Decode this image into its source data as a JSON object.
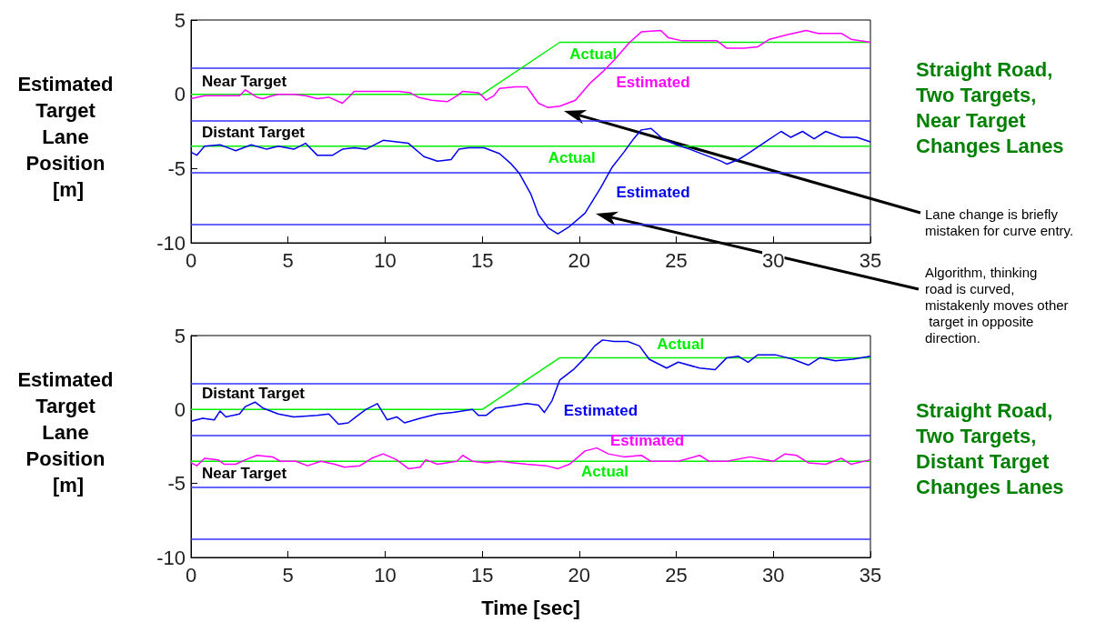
{
  "chart_data": [
    {
      "type": "line",
      "ylabel": "Estimated Target Lane Position [m]",
      "xlim": [
        0,
        35
      ],
      "xticks": [
        0,
        5,
        10,
        15,
        20,
        25,
        30,
        35
      ],
      "ylim": [
        -10,
        5
      ],
      "yticks": [
        -10,
        -5,
        0,
        5
      ],
      "grid": false,
      "legend": false,
      "marker": "none",
      "line_style": "solid",
      "ref_lines": [
        {
          "axis": "y",
          "value": 1.75,
          "color": "#3333ff"
        },
        {
          "axis": "y",
          "value": -1.75,
          "color": "#3333ff"
        },
        {
          "axis": "y",
          "value": -5.25,
          "color": "#3333ff"
        },
        {
          "axis": "y",
          "value": -8.75,
          "color": "#3333ff"
        }
      ],
      "annotations": [
        "Near Target",
        "Distant Target",
        "Straight Road, Two Targets, Near Target Changes Lanes",
        "Lane change is briefly mistaken for curve entry.",
        "Algorithm, thinking road is curved, mistakenly moves other target in opposite direction."
      ],
      "series": [
        {
          "name": "Actual",
          "color": "#00ee00",
          "x": [
            0,
            15,
            19,
            35
          ],
          "values": [
            0,
            0,
            3.5,
            3.5
          ]
        },
        {
          "name": "Estimated",
          "color": "#ff00ff",
          "x": [
            0,
            0.7,
            1.8,
            2.5,
            2.8,
            3.4,
            3.7,
            4.2,
            4.5,
            5.3,
            5.9,
            6.5,
            7.1,
            7.8,
            8.2,
            8.4,
            9.6,
            10.7,
            11.3,
            11.7,
            12.4,
            13.2,
            13.7,
            14,
            14.8,
            15,
            15.2,
            15.6,
            15.9,
            16.7,
            17.3,
            17.9,
            18.4,
            19,
            19.8,
            20.6,
            21.2,
            21.8,
            22.6,
            23.2,
            24.2,
            24.6,
            25.3,
            26.4,
            27.1,
            27.6,
            28.5,
            29.2,
            29.8,
            30.7,
            31.7,
            32.3,
            33.5,
            34,
            35
          ],
          "values": [
            -0.3,
            -0.1,
            -0.1,
            -0.1,
            0.3,
            -0.2,
            -0.3,
            -0.1,
            0,
            0,
            -0.1,
            -0.3,
            -0.2,
            -0.6,
            -0.1,
            0.2,
            0.2,
            0.2,
            0.1,
            -0.2,
            -0.4,
            -0.5,
            -0.1,
            0.2,
            0.1,
            -0.1,
            -0.4,
            -0.1,
            0.4,
            0.5,
            0.5,
            -0.6,
            -0.9,
            -0.8,
            -0.4,
            0.8,
            1.5,
            2.3,
            3.5,
            4.2,
            4.3,
            3.8,
            3.6,
            3.6,
            3.6,
            3.1,
            3.1,
            3.2,
            3.7,
            4,
            4.3,
            4.1,
            4.1,
            3.7,
            3.5
          ]
        },
        {
          "name": "Actual",
          "color": "#00ee00",
          "x": [
            0,
            35
          ],
          "values": [
            -3.5,
            -3.5
          ]
        },
        {
          "name": "Estimated",
          "color": "#0000ee",
          "x": [
            0,
            0.3,
            0.7,
            1.5,
            2.3,
            3.1,
            3.9,
            4.5,
            5.3,
            5.9,
            6.5,
            7.3,
            7.8,
            8.4,
            9,
            9.9,
            11.2,
            12,
            12.7,
            13.4,
            13.8,
            14.3,
            15.1,
            15.9,
            16.5,
            16.9,
            17.5,
            17.9,
            18.4,
            18.9,
            19.5,
            20.3,
            21.1,
            21.7,
            22.3,
            22.8,
            23.2,
            23.7,
            24.3,
            25,
            25.7,
            26.5,
            27.3,
            27.6,
            28.2,
            28.8,
            29.6,
            30.4,
            30.9,
            31.5,
            32.1,
            32.7,
            33.5,
            34.3,
            35
          ],
          "values": [
            -3.9,
            -4.1,
            -3.5,
            -3.4,
            -3.8,
            -3.4,
            -3.7,
            -3.5,
            -3.7,
            -3.3,
            -4.1,
            -4.1,
            -3.7,
            -3.6,
            -3.7,
            -3.1,
            -3.3,
            -4.2,
            -4.5,
            -4.4,
            -3.7,
            -3.6,
            -3.6,
            -4,
            -4.7,
            -5.3,
            -6.7,
            -8.1,
            -9,
            -9.4,
            -8.9,
            -8,
            -6.3,
            -4.9,
            -3.9,
            -3,
            -2.4,
            -2.3,
            -3,
            -3.4,
            -3.7,
            -4.1,
            -4.5,
            -4.7,
            -4.4,
            -3.9,
            -3.2,
            -2.5,
            -2.9,
            -2.5,
            -3,
            -2.5,
            -2.9,
            -2.9,
            -3.2
          ]
        }
      ]
    },
    {
      "type": "line",
      "ylabel": "Estimated Target Lane Position [m]",
      "xlabel": "Time [sec]",
      "xlim": [
        0,
        35
      ],
      "xticks": [
        0,
        5,
        10,
        15,
        20,
        25,
        30,
        35
      ],
      "ylim": [
        -10,
        5
      ],
      "yticks": [
        -10,
        -5,
        0,
        5
      ],
      "grid": false,
      "legend": false,
      "marker": "none",
      "line_style": "solid",
      "ref_lines": [
        {
          "axis": "y",
          "value": 1.75,
          "color": "#3333ff"
        },
        {
          "axis": "y",
          "value": -1.75,
          "color": "#3333ff"
        },
        {
          "axis": "y",
          "value": -5.25,
          "color": "#3333ff"
        },
        {
          "axis": "y",
          "value": -8.75,
          "color": "#3333ff"
        }
      ],
      "annotations": [
        "Distant Target",
        "Near Target",
        "Straight Road, Two Targets, Distant Target Changes Lanes"
      ],
      "series": [
        {
          "name": "Actual",
          "color": "#00ee00",
          "x": [
            0,
            15,
            19,
            35
          ],
          "values": [
            0,
            0,
            3.5,
            3.5
          ]
        },
        {
          "name": "Estimated",
          "color": "#0000ee",
          "x": [
            0,
            0.6,
            1.2,
            1.5,
            1.8,
            2.5,
            2.8,
            3.3,
            3.7,
            4.5,
            5.3,
            6.5,
            7.1,
            7.6,
            8.1,
            8.5,
            9,
            9.6,
            10.1,
            10.6,
            11,
            11.8,
            12.7,
            13.5,
            14.5,
            14.8,
            15.2,
            15.7,
            16.8,
            17.3,
            17.9,
            18.2,
            18.6,
            19,
            19.7,
            20.3,
            20.8,
            21.2,
            21.8,
            22.5,
            23.1,
            23.6,
            24.5,
            25.1,
            26.2,
            27,
            27.6,
            28.2,
            28.7,
            29.2,
            30.1,
            31,
            31.8,
            32.4,
            33.2,
            34.1,
            35
          ],
          "values": [
            -0.8,
            -0.6,
            -0.7,
            -0.1,
            -0.5,
            -0.3,
            0.2,
            0.5,
            0.1,
            -0.3,
            -0.5,
            -0.4,
            -0.3,
            -1,
            -0.9,
            -0.5,
            0,
            0.4,
            -0.7,
            -0.5,
            -0.9,
            -0.6,
            -0.3,
            -0.2,
            0,
            -0.4,
            -0.4,
            0.1,
            0.3,
            0.4,
            0.3,
            -0.2,
            0.6,
            2,
            2.7,
            3.5,
            4.3,
            4.7,
            4.6,
            4.6,
            4.3,
            3.4,
            2.8,
            3.2,
            2.8,
            2.7,
            3.5,
            3.6,
            3.2,
            3.7,
            3.7,
            3.4,
            3,
            3.5,
            3.3,
            3.4,
            3.6
          ]
        },
        {
          "name": "Actual",
          "color": "#00ee00",
          "x": [
            0,
            35
          ],
          "values": [
            -3.5,
            -3.5
          ]
        },
        {
          "name": "Estimated",
          "color": "#ff00ff",
          "x": [
            0,
            0.3,
            0.7,
            1.4,
            1.7,
            2.3,
            2.8,
            3.4,
            4.2,
            4.6,
            5.4,
            6,
            6.7,
            7.4,
            7.9,
            8.7,
            9.3,
            9.9,
            10.6,
            11.2,
            11.8,
            12.1,
            12.7,
            13.7,
            14,
            14.5,
            15.2,
            15.9,
            16.6,
            17.3,
            18.3,
            18.9,
            19.5,
            20.3,
            20.9,
            21.5,
            22.3,
            23.2,
            23.7,
            25.1,
            26.2,
            26.7,
            27.6,
            28.8,
            30,
            30.6,
            31.2,
            31.8,
            32.7,
            33.5,
            34,
            35
          ],
          "values": [
            -3.6,
            -3.8,
            -3.3,
            -3.4,
            -3.7,
            -3.7,
            -3.4,
            -3.1,
            -3.2,
            -3.5,
            -3.5,
            -3.8,
            -3.5,
            -3.7,
            -3.9,
            -3.8,
            -3.3,
            -3,
            -3.4,
            -4,
            -3.9,
            -3.4,
            -3.7,
            -3.5,
            -3.1,
            -3.5,
            -3.6,
            -3.5,
            -3.6,
            -3.7,
            -3.8,
            -4,
            -3.7,
            -2.8,
            -2.6,
            -3,
            -3.2,
            -3.1,
            -3.5,
            -3.5,
            -3.1,
            -3.5,
            -3.5,
            -3.2,
            -3.5,
            -3,
            -3.1,
            -3.6,
            -3.7,
            -3.3,
            -3.7,
            -3.4
          ]
        }
      ]
    }
  ]
}
